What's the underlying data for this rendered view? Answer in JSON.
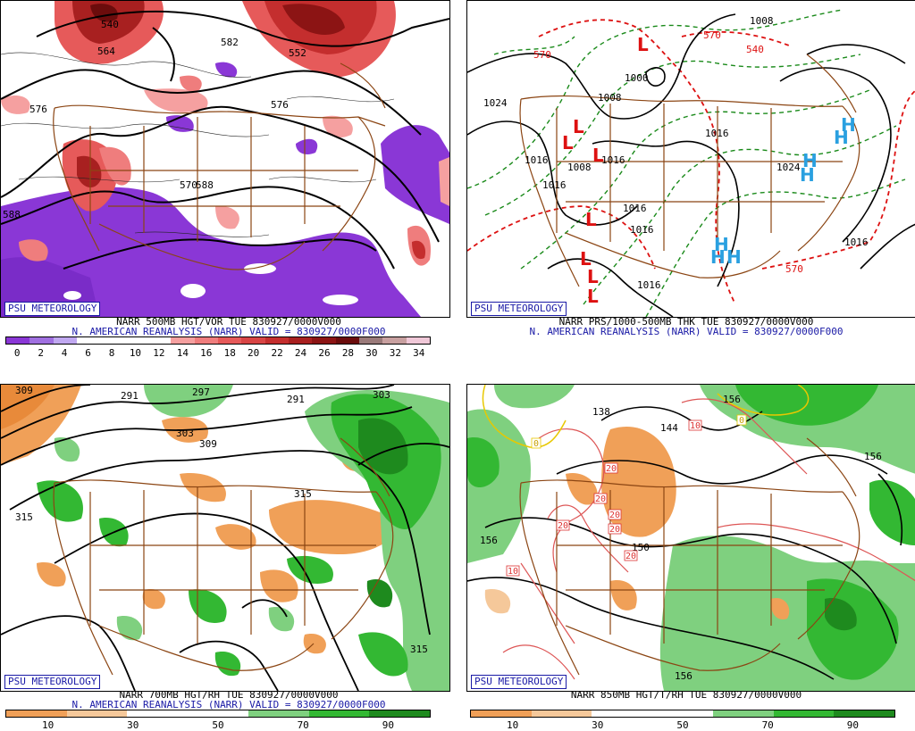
{
  "psu_label": "PSU METEOROLOGY",
  "panels": [
    {
      "title_line1": "NARR 500MB HGT/VOR TUE 830927/0000V000",
      "title_line2": "N. AMERICAN REANALYSIS (NARR) VALID = 830927/0000F000",
      "contour_labels": [
        "576",
        "576",
        "588",
        "588",
        "582",
        "552",
        "564",
        "540",
        "570"
      ],
      "legend_ticks": [
        "0",
        "2",
        "4",
        "6",
        "8",
        "10",
        "12",
        "14",
        "16",
        "18",
        "20",
        "22",
        "24",
        "26",
        "28",
        "30",
        "32",
        "34"
      ],
      "legend_colors": [
        "#8a37d6",
        "#a070e0",
        "#c0a8f0",
        "#ffffff",
        "#ffffff",
        "#ffffff",
        "#ffffff",
        "#f5a0a0",
        "#ef7d7d",
        "#e65a5a",
        "#d84545",
        "#c42e2e",
        "#a82020",
        "#8c1414",
        "#6b0c0c",
        "#9a7a7a",
        "#c8a0a0",
        "#f0c8d8"
      ]
    },
    {
      "title_line1": "NARR PRS/1000-500MB THK TUE 830927/0000V000",
      "title_line2": "N. AMERICAN REANALYSIS (NARR) VALID = 830927/0000F000",
      "pressure_labels": [
        "1024",
        "1008",
        "1000",
        "1016",
        "1016",
        "1016",
        "1016",
        "1016",
        "1016",
        "1016",
        "1024",
        "1016",
        "1008",
        "1008"
      ],
      "thickness_labels": [
        "570",
        "540",
        "570",
        "570"
      ],
      "low_symbol": "L",
      "high_symbol": "H"
    },
    {
      "title_line1": "NARR 700MB HGT/RH TUE 830927/0000V000",
      "title_line2": "N. AMERICAN REANALYSIS (NARR) VALID = 830927/0000F000",
      "contour_labels": [
        "309",
        "291",
        "297",
        "291",
        "303",
        "303",
        "309",
        "315",
        "315",
        "315"
      ],
      "legend_ticks": [
        "10",
        "30",
        "50",
        "70",
        "90"
      ],
      "legend_colors": [
        "#f0a058",
        "#f5c89a",
        "#ffffff",
        "#ffffff",
        "#7fd07f",
        "#33b833",
        "#1e8a1e"
      ]
    },
    {
      "title_line1": "NARR 850MB HGT/T/RH TUE 830927/0000V000",
      "contour_labels": [
        "138",
        "144",
        "150",
        "156",
        "156",
        "156",
        "156"
      ],
      "temp_labels": [
        "10",
        "20",
        "20",
        "20",
        "20",
        "20",
        "20",
        "10",
        "0",
        "0"
      ],
      "legend_ticks": [
        "10",
        "30",
        "50",
        "70",
        "90"
      ],
      "legend_colors": [
        "#f0a058",
        "#f5c89a",
        "#ffffff",
        "#ffffff",
        "#7fd07f",
        "#33b833",
        "#1e8a1e"
      ]
    }
  ]
}
